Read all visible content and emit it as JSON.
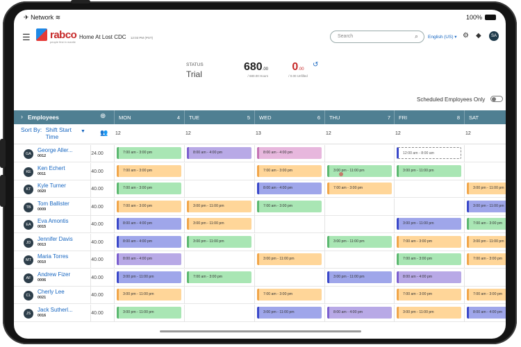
{
  "status_bar": {
    "left": "Network",
    "wifi_icon": "wifi-icon",
    "battery": "100%"
  },
  "app": {
    "logo_text": "rabco",
    "logo_tagline": "people first in mantle",
    "location": "Home At Lost CDC",
    "local_time": "12:03 PM (PST)",
    "search_placeholder": "Search",
    "language": "English (US) ▾",
    "avatar": "SA"
  },
  "summary": {
    "status_label": "STATUS",
    "status_value": "Trial",
    "hours_big": "680",
    "hours_sup": ".00",
    "hours_sub": "/ 680.00 Hours",
    "unfilled_big": "0",
    "unfilled_sup": ".00",
    "unfilled_sub": "/ 0.00 Unfilled"
  },
  "scheduled_only_label": "Scheduled Employees Only",
  "grid": {
    "employees_header": "Employees",
    "sort_by_label": "Sort By:",
    "sort_by_value_1": "Shift Start",
    "sort_by_value_2": "Time",
    "days": [
      {
        "name": "MON",
        "date": "4",
        "count": "12"
      },
      {
        "name": "TUE",
        "date": "5",
        "count": "12"
      },
      {
        "name": "WED",
        "date": "6",
        "count": "13"
      },
      {
        "name": "THU",
        "date": "7",
        "count": "12"
      },
      {
        "name": "FRI",
        "date": "8",
        "count": "12"
      },
      {
        "name": "SAT",
        "date": "",
        "count": "12"
      }
    ]
  },
  "employees": [
    {
      "initials": "GA",
      "name": "George Aller...",
      "id": "0012",
      "hours": "24.00",
      "shifts": [
        [
          "7:00 am - 3:00 pm",
          "green"
        ],
        [
          "8:00 am - 4:00 pm",
          "purple"
        ],
        [
          "8:00 am - 4:00 pm",
          "pink"
        ],
        null,
        [
          "12:00 am - 8:00 am",
          "outline"
        ],
        null
      ]
    },
    {
      "initials": "KE",
      "name": "Ken Echert",
      "id": "0011",
      "hours": "40.00",
      "shifts": [
        [
          "7:00 am - 3:00 pm",
          "orange"
        ],
        null,
        [
          "7:00 am - 3:00 pm",
          "orange"
        ],
        [
          "3:00 pm - 11:00 pm",
          "green"
        ],
        [
          "3:00 pm - 11:00 pm",
          "green"
        ],
        null
      ]
    },
    {
      "initials": "KT",
      "name": "Kyle Turner",
      "id": "0020",
      "hours": "40.00",
      "shifts": [
        [
          "7:00 am - 3:00 pm",
          "green"
        ],
        null,
        [
          "8:00 am - 4:00 pm",
          "blue"
        ],
        [
          "7:00 am - 3:00 pm",
          "orange"
        ],
        null,
        [
          "3:00 pm - 11:00 pm",
          "orange"
        ]
      ]
    },
    {
      "initials": "TB",
      "name": "Tom Ballister",
      "id": "0009",
      "hours": "40.00",
      "shifts": [
        [
          "7:00 am - 3:00 pm",
          "orange"
        ],
        [
          "3:00 pm - 11:00 pm",
          "orange"
        ],
        [
          "7:00 am - 3:00 pm",
          "green"
        ],
        null,
        null,
        [
          "3:00 pm - 11:00 pm",
          "blue"
        ]
      ]
    },
    {
      "initials": "EA",
      "name": "Eva Amontis",
      "id": "0015",
      "hours": "40.00",
      "shifts": [
        [
          "8:00 am - 4:00 pm",
          "blue"
        ],
        [
          "3:00 pm - 11:00 pm",
          "orange"
        ],
        null,
        null,
        [
          "3:00 pm - 11:00 pm",
          "blue"
        ],
        [
          "7:00 am - 3:00 pm",
          "green"
        ]
      ]
    },
    {
      "initials": "JD",
      "name": "Jennifer Davis",
      "id": "0013",
      "hours": "40.00",
      "shifts": [
        [
          "8:00 am - 4:00 pm",
          "blue"
        ],
        [
          "3:00 pm - 11:00 pm",
          "green"
        ],
        null,
        [
          "3:00 pm - 11:00 pm",
          "green"
        ],
        [
          "7:00 am - 3:00 pm",
          "orange"
        ],
        [
          "3:00 pm - 11:00 pm",
          "orange"
        ]
      ]
    },
    {
      "initials": "MT",
      "name": "Maria Torres",
      "id": "0010",
      "hours": "40.00",
      "shifts": [
        [
          "8:00 am - 4:00 pm",
          "purple"
        ],
        null,
        [
          "3:00 pm - 11:00 pm",
          "orange"
        ],
        null,
        [
          "7:00 am - 3:00 pm",
          "green"
        ],
        [
          "7:00 am - 3:00 pm",
          "orange"
        ]
      ]
    },
    {
      "initials": "AF",
      "name": "Andrew Fizer",
      "id": "0006",
      "hours": "40.00",
      "shifts": [
        [
          "3:00 pm - 11:00 pm",
          "blue"
        ],
        [
          "7:00 am - 3:00 pm",
          "green"
        ],
        null,
        [
          "3:00 pm - 11:00 pm",
          "blue"
        ],
        [
          "8:00 am - 4:00 pm",
          "purple"
        ],
        null
      ]
    },
    {
      "initials": "CL",
      "name": "Cherly Lee",
      "id": "0021",
      "hours": "40.00",
      "shifts": [
        [
          "3:00 pm - 11:00 pm",
          "orange"
        ],
        null,
        [
          "7:00 am - 3:00 pm",
          "orange"
        ],
        null,
        [
          "7:00 am - 3:00 pm",
          "orange"
        ],
        [
          "7:00 am - 3:00 pm",
          "orange"
        ]
      ]
    },
    {
      "initials": "JS",
      "name": "Jack Sutherl...",
      "id": "0016",
      "hours": "40.00",
      "shifts": [
        [
          "3:00 pm - 11:00 pm",
          "green"
        ],
        null,
        [
          "3:00 pm - 11:00 pm",
          "blue"
        ],
        [
          "8:00 am - 4:00 pm",
          "purple"
        ],
        [
          "3:00 pm - 11:00 pm",
          "orange"
        ],
        [
          "8:00 am - 4:00 pm",
          "blue"
        ]
      ]
    }
  ]
}
